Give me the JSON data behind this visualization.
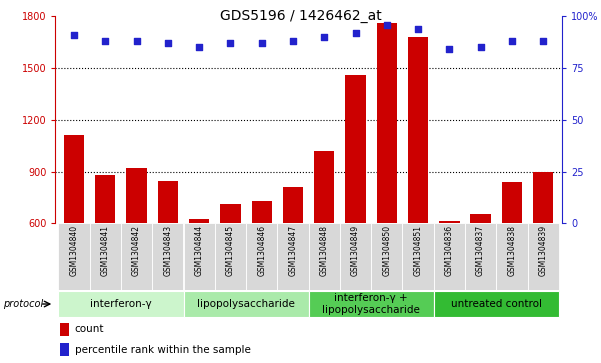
{
  "title": "GDS5196 / 1426462_at",
  "samples": [
    "GSM1304840",
    "GSM1304841",
    "GSM1304842",
    "GSM1304843",
    "GSM1304844",
    "GSM1304845",
    "GSM1304846",
    "GSM1304847",
    "GSM1304848",
    "GSM1304849",
    "GSM1304850",
    "GSM1304851",
    "GSM1304836",
    "GSM1304837",
    "GSM1304838",
    "GSM1304839"
  ],
  "counts": [
    1110,
    880,
    920,
    845,
    625,
    710,
    730,
    810,
    1020,
    1460,
    1760,
    1680,
    615,
    655,
    840,
    895
  ],
  "percentiles": [
    91,
    88,
    88,
    87,
    85,
    87,
    87,
    88,
    90,
    92,
    96,
    94,
    84,
    85,
    88,
    88
  ],
  "ylim_left": [
    600,
    1800
  ],
  "ylim_right": [
    0,
    100
  ],
  "yticks_left": [
    600,
    900,
    1200,
    1500,
    1800
  ],
  "yticks_right": [
    0,
    25,
    50,
    75,
    100
  ],
  "bar_color": "#cc0000",
  "dot_color": "#2222cc",
  "bar_bottom": 600,
  "groups": [
    {
      "label": "interferon-γ",
      "start": 0,
      "end": 4,
      "color": "#d8f5d8"
    },
    {
      "label": "lipopolysaccharide",
      "start": 4,
      "end": 8,
      "color": "#b8ecb8"
    },
    {
      "label": "interferon-γ +\nlipopolysaccharide",
      "start": 8,
      "end": 12,
      "color": "#66cc66"
    },
    {
      "label": "untreated control",
      "start": 12,
      "end": 16,
      "color": "#44bb44"
    }
  ],
  "protocol_label": "protocol",
  "legend_count_label": "count",
  "legend_percentile_label": "percentile rank within the sample",
  "bar_color_hex": "#cc0000",
  "dot_color_hex": "#2222cc",
  "title_fontsize": 10,
  "axis_fontsize": 7,
  "sample_fontsize": 5.5,
  "group_label_fontsize": 7.5,
  "legend_fontsize": 7.5
}
